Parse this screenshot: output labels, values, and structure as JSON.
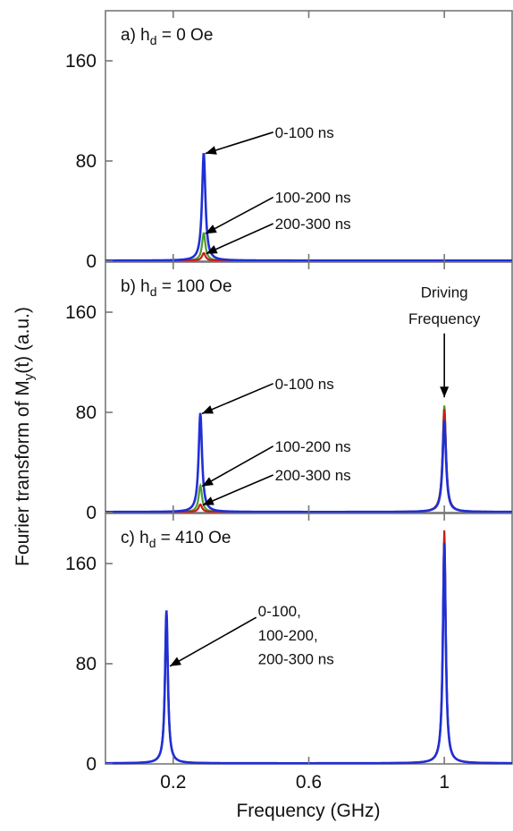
{
  "chart_data": {
    "type": "line",
    "xlabel": "Frequency (GHz)",
    "ylabel_main": "Fourier transform of M",
    "ylabel_sub": "y",
    "ylabel_rest": "(t) (a.u.)",
    "xlim": [
      0.0,
      1.2
    ],
    "xticks": [
      0.2,
      0.6,
      1.0
    ],
    "xtick_labels": [
      "0.2",
      "0.6",
      "1"
    ],
    "series_colors": {
      "0-100 ns": "#1f2fd6",
      "100-200 ns": "#4f9a2e",
      "200-300 ns": "#cc1b1b"
    },
    "panels": [
      {
        "label_prefix": "a) h",
        "label_sub": "d",
        "label_suffix": " = 0 Oe",
        "ylim": [
          0,
          200
        ],
        "yticks": [
          0,
          80,
          160
        ],
        "ytick_labels": [
          "0",
          "80",
          "160"
        ],
        "series": [
          {
            "peaks": [
              {
                "x": 0.29,
                "y": 86
              }
            ],
            "width": 0.006
          },
          {
            "peaks": [
              {
                "x": 0.29,
                "y": 22
              }
            ],
            "width": 0.006
          },
          {
            "peaks": [
              {
                "x": 0.29,
                "y": 6
              }
            ],
            "width": 0.006
          }
        ],
        "annotations": [
          {
            "text": "0-100 ns",
            "x": 0.5,
            "y": 103
          },
          {
            "text": "100-200 ns",
            "x": 0.5,
            "y": 51
          },
          {
            "text": "200-300 ns",
            "x": 0.5,
            "y": 30
          }
        ]
      },
      {
        "label_prefix": "b) h",
        "label_sub": "d",
        "label_suffix": " = 100 Oe",
        "ylim": [
          0,
          200
        ],
        "yticks": [
          0,
          80,
          160
        ],
        "ytick_labels": [
          "0",
          "80",
          "160"
        ],
        "series": [
          {
            "peaks": [
              {
                "x": 0.28,
                "y": 79
              },
              {
                "x": 1.0,
                "y": 73
              }
            ],
            "width": 0.006
          },
          {
            "peaks": [
              {
                "x": 0.28,
                "y": 21
              },
              {
                "x": 1.0,
                "y": 85
              }
            ],
            "width": 0.006
          },
          {
            "peaks": [
              {
                "x": 0.28,
                "y": 6
              },
              {
                "x": 1.0,
                "y": 82
              }
            ],
            "width": 0.006
          }
        ],
        "annotations": [
          {
            "text": "0-100 ns",
            "x": 0.5,
            "y": 103
          },
          {
            "text": "100-200 ns",
            "x": 0.5,
            "y": 53
          },
          {
            "text": "200-300 ns",
            "x": 0.5,
            "y": 30
          },
          {
            "text": "Driving",
            "x": 1.0,
            "y": 176
          },
          {
            "text": "Frequency",
            "x": 1.0,
            "y": 155
          }
        ]
      },
      {
        "label_prefix": "c) h",
        "label_sub": "d",
        "label_suffix": " = 410 Oe",
        "ylim": [
          0,
          200
        ],
        "yticks": [
          0,
          80,
          160
        ],
        "ytick_labels": [
          "0",
          "80",
          "160"
        ],
        "series": [
          {
            "peaks": [
              {
                "x": 0.18,
                "y": 122
              },
              {
                "x": 1.0,
                "y": 176
              }
            ],
            "width": 0.005
          },
          {
            "peaks": [
              {
                "x": 0.18,
                "y": 122
              },
              {
                "x": 1.0,
                "y": 180
              }
            ],
            "width": 0.005
          },
          {
            "peaks": [
              {
                "x": 0.18,
                "y": 122
              },
              {
                "x": 1.0,
                "y": 186
              }
            ],
            "width": 0.005
          }
        ],
        "annotations": [
          {
            "text": "0-100,",
            "x": 0.45,
            "y": 122
          },
          {
            "text": "100-200,",
            "x": 0.45,
            "y": 103
          },
          {
            "text": "200-300 ns",
            "x": 0.45,
            "y": 84
          }
        ]
      }
    ]
  }
}
